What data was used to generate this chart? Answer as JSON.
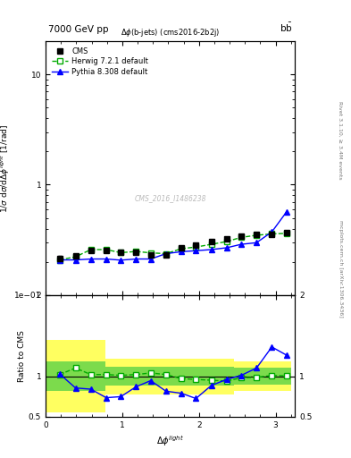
{
  "title_left": "7000 GeV pp",
  "title_right": "b$\\bar{\\rm b}$",
  "plot_title": "$\\Delta\\phi$(b-jets) (cms2016-2b2j)",
  "xlabel": "$\\Delta\\phi^{light}$",
  "ylabel_main": "1/$\\sigma$ d$\\sigma$/d$\\Delta\\phi^{light}$ [1/rad]",
  "ylabel_ratio": "Ratio to CMS",
  "right_label_top": "Rivet 3.1.10, ≥ 3.4M events",
  "right_label_bottom": "mcplots.cern.ch [arXiv:1306.3436]",
  "watermark": "CMS_2016_I1486238",
  "x_cms": [
    0.18,
    0.39,
    0.59,
    0.79,
    0.98,
    1.18,
    1.37,
    1.57,
    1.77,
    1.96,
    2.16,
    2.36,
    2.55,
    2.75,
    2.95,
    3.14
  ],
  "y_cms": [
    0.215,
    0.225,
    0.255,
    0.255,
    0.245,
    0.245,
    0.232,
    0.232,
    0.27,
    0.282,
    0.305,
    0.325,
    0.342,
    0.355,
    0.355,
    0.365
  ],
  "y_cms_err": [
    0.01,
    0.008,
    0.008,
    0.008,
    0.008,
    0.008,
    0.008,
    0.008,
    0.01,
    0.01,
    0.01,
    0.01,
    0.01,
    0.01,
    0.01,
    0.012
  ],
  "x_herwig": [
    0.18,
    0.39,
    0.59,
    0.79,
    0.98,
    1.18,
    1.37,
    1.57,
    1.77,
    1.96,
    2.16,
    2.36,
    2.55,
    2.75,
    2.95,
    3.14
  ],
  "y_herwig": [
    0.208,
    0.222,
    0.258,
    0.258,
    0.242,
    0.248,
    0.241,
    0.237,
    0.263,
    0.272,
    0.288,
    0.305,
    0.333,
    0.348,
    0.358,
    0.362
  ],
  "x_pythia": [
    0.18,
    0.39,
    0.59,
    0.79,
    0.98,
    1.18,
    1.37,
    1.57,
    1.77,
    1.96,
    2.16,
    2.36,
    2.55,
    2.75,
    2.95,
    3.14
  ],
  "y_pythia": [
    0.208,
    0.208,
    0.212,
    0.212,
    0.207,
    0.212,
    0.212,
    0.237,
    0.247,
    0.252,
    0.258,
    0.268,
    0.288,
    0.298,
    0.373,
    0.565
  ],
  "ratio_herwig": [
    1.02,
    1.1,
    1.02,
    1.02,
    1.01,
    1.02,
    1.04,
    1.02,
    0.97,
    0.96,
    0.95,
    0.94,
    0.98,
    0.985,
    1.01,
    1.005
  ],
  "ratio_pythia": [
    1.03,
    0.855,
    0.84,
    0.735,
    0.748,
    0.87,
    0.945,
    0.815,
    0.79,
    0.725,
    0.885,
    0.96,
    1.01,
    1.1,
    1.36,
    1.26
  ],
  "band_x_edges": [
    0.0,
    0.29,
    0.785,
    1.275,
    1.77,
    2.46,
    3.2
  ],
  "band_yellow_lo": [
    0.55,
    0.55,
    0.78,
    0.78,
    0.78,
    0.82,
    0.82
  ],
  "band_yellow_hi": [
    1.45,
    1.45,
    1.22,
    1.22,
    1.22,
    1.18,
    1.18
  ],
  "band_green_lo": [
    0.82,
    0.82,
    0.88,
    0.88,
    0.88,
    0.9,
    0.9
  ],
  "band_green_hi": [
    1.18,
    1.18,
    1.12,
    1.12,
    1.12,
    1.1,
    1.1
  ],
  "color_cms": "black",
  "color_herwig": "#00aa00",
  "color_pythia": "blue",
  "color_yellow": "#ffff44",
  "color_green": "#44cc44",
  "xlim": [
    0.0,
    3.25
  ],
  "ylim_main": [
    0.1,
    20
  ],
  "ylim_ratio": [
    0.5,
    2.0
  ]
}
